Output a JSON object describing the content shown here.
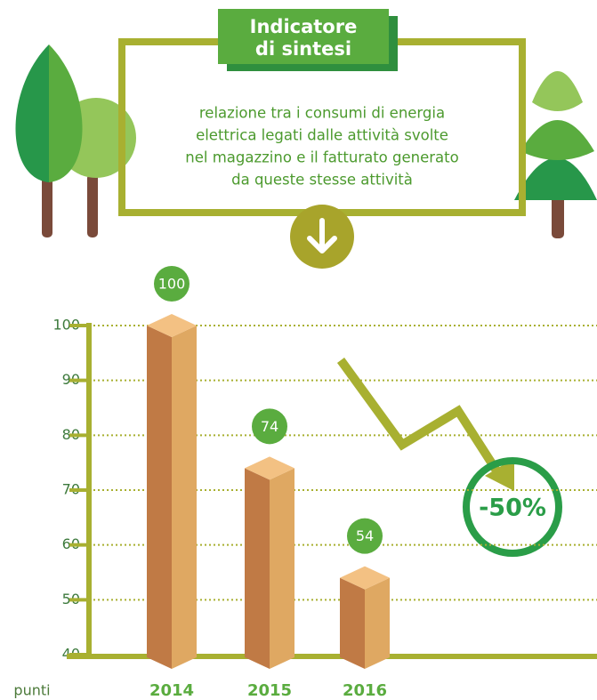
{
  "header": {
    "title_lines": [
      "Indicatore",
      "di sintesi"
    ],
    "description_lines": [
      "relazione tra i consumi di energia",
      "elettrica legati dalle attività svolte",
      "nel magazzino e il fatturato generato",
      "da queste stesse attività"
    ]
  },
  "chart_data": {
    "type": "bar",
    "categories": [
      "2014",
      "2015",
      "2016"
    ],
    "values": [
      100,
      74,
      54
    ],
    "ylim": [
      40,
      100
    ],
    "yticks": [
      40,
      50,
      60,
      70,
      80,
      90,
      100
    ],
    "y_label": "punti",
    "annotation": "-50%",
    "grid": true,
    "color": "#c07a45"
  }
}
